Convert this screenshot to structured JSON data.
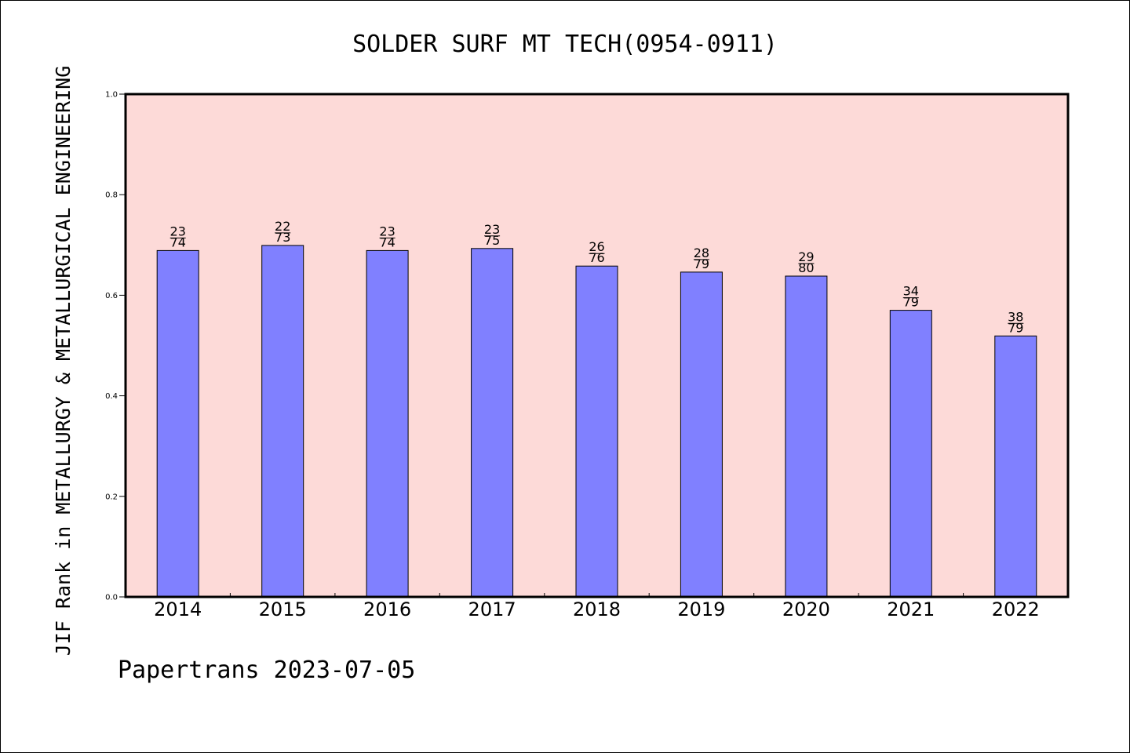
{
  "chart_data": {
    "type": "bar",
    "title": "SOLDER SURF MT TECH(0954-0911)",
    "ylabel": "JIF Rank in METALLURGY & METALLURGICAL ENGINEERING",
    "xlabel": "",
    "footer": "Papertrans 2023-07-05",
    "ylim": [
      0,
      1.0
    ],
    "yticks": [
      "0.0",
      "0.2",
      "0.4",
      "0.6",
      "0.8",
      "1.0"
    ],
    "categories": [
      "2014",
      "2015",
      "2016",
      "2017",
      "2018",
      "2019",
      "2020",
      "2021",
      "2022"
    ],
    "values": [
      0.689,
      0.699,
      0.689,
      0.693,
      0.658,
      0.646,
      0.638,
      0.57,
      0.519
    ],
    "labels": [
      {
        "rank": "23",
        "total": "74"
      },
      {
        "rank": "22",
        "total": "73"
      },
      {
        "rank": "23",
        "total": "74"
      },
      {
        "rank": "23",
        "total": "75"
      },
      {
        "rank": "26",
        "total": "76"
      },
      {
        "rank": "28",
        "total": "79"
      },
      {
        "rank": "29",
        "total": "80"
      },
      {
        "rank": "34",
        "total": "79"
      },
      {
        "rank": "38",
        "total": "79"
      }
    ],
    "colors": {
      "bar": "#8080ff",
      "plot_bg": "#fddad8",
      "axis": "#000000"
    },
    "grid": false
  }
}
